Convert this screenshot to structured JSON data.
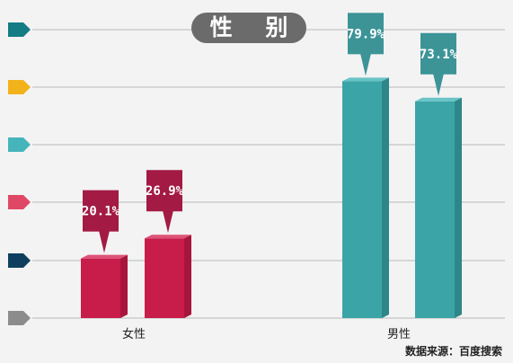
{
  "title": "性 别",
  "source": "数据来源：百度搜索",
  "colors": {
    "female_front": "#c81c4a",
    "female_side": "#a8153c",
    "female_top": "#de5276",
    "female_callout": "#a31a45",
    "male_front": "#3ba4a7",
    "male_side": "#2d8688",
    "male_top": "#68c3c5",
    "male_callout": "#3c9497",
    "gridline": "#b9b9b9"
  },
  "legend_markers": [
    {
      "color": "#137c84"
    },
    {
      "color": "#f2b31a"
    },
    {
      "color": "#45b5bb"
    },
    {
      "color": "#e04766"
    },
    {
      "color": "#0f3f5e"
    },
    {
      "color": "#8c8c8c"
    }
  ],
  "chart_data": {
    "type": "bar",
    "title": "性 别",
    "groups": [
      {
        "name": "女性",
        "bars": [
          {
            "value": 20.1,
            "label": "20.1%"
          },
          {
            "value": 26.9,
            "label": "26.9%"
          }
        ]
      },
      {
        "name": "男性",
        "bars": [
          {
            "value": 79.9,
            "label": "79.9%"
          },
          {
            "value": 73.1,
            "label": "73.1%"
          }
        ]
      }
    ],
    "ylim": [
      0,
      100
    ],
    "grid": true
  }
}
